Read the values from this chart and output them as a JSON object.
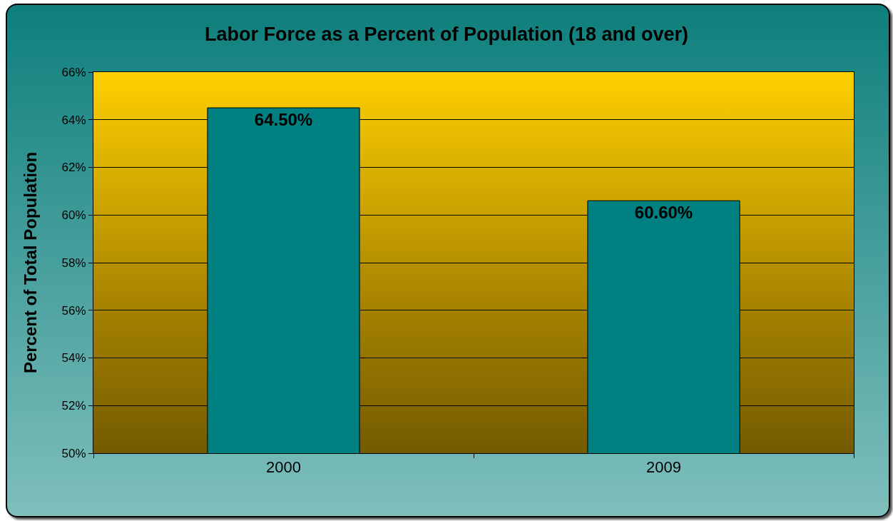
{
  "chart_data": {
    "type": "bar",
    "title": "Labor Force as a Percent of Population (18 and over)",
    "ylabel": "Percent of Total Population",
    "categories": [
      "2000",
      "2009"
    ],
    "values": [
      64.5,
      60.6
    ],
    "value_labels": [
      "64.50%",
      "60.60%"
    ],
    "color": "#008080",
    "ylim": [
      50,
      66
    ],
    "yticks": [
      {
        "value": 50,
        "label": "50%"
      },
      {
        "value": 52,
        "label": "52%"
      },
      {
        "value": 54,
        "label": "54%"
      },
      {
        "value": 56,
        "label": "56%"
      },
      {
        "value": 58,
        "label": "58%"
      },
      {
        "value": 60,
        "label": "60%"
      },
      {
        "value": 62,
        "label": "62%"
      },
      {
        "value": 64,
        "label": "64%"
      },
      {
        "value": 66,
        "label": "66%"
      }
    ],
    "grid": "y"
  }
}
